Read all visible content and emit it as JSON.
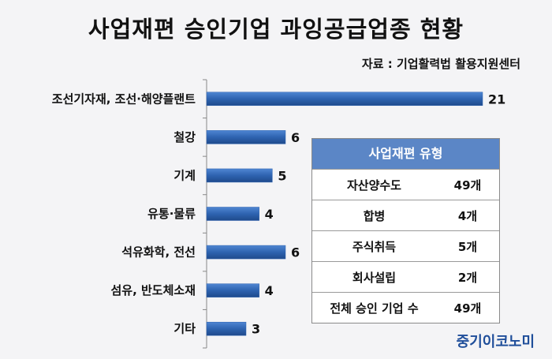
{
  "title": "사업재편 승인기업 과잉공급업종 현황",
  "source": "자료 : 기업활력법 활용지원센터",
  "brand": "중기이코노미",
  "chart_data": {
    "type": "bar",
    "orientation": "horizontal",
    "categories": [
      "조선기자재, 조선·해양플랜트",
      "철강",
      "기계",
      "유통·물류",
      "석유화학, 전선",
      "섬유, 반도체소재",
      "기타"
    ],
    "values": [
      21,
      6,
      5,
      4,
      6,
      4,
      3
    ],
    "bar_color": "#2e63b0",
    "grid": false
  },
  "table": {
    "header": "사업재편 유형",
    "rows": [
      {
        "name": "자산양수도",
        "count": "49개"
      },
      {
        "name": "합병",
        "count": "4개"
      },
      {
        "name": "주식취득",
        "count": "5개"
      },
      {
        "name": "회사설립",
        "count": "2개"
      },
      {
        "name": "전체 승인 기업 수",
        "count": "49개"
      }
    ]
  }
}
